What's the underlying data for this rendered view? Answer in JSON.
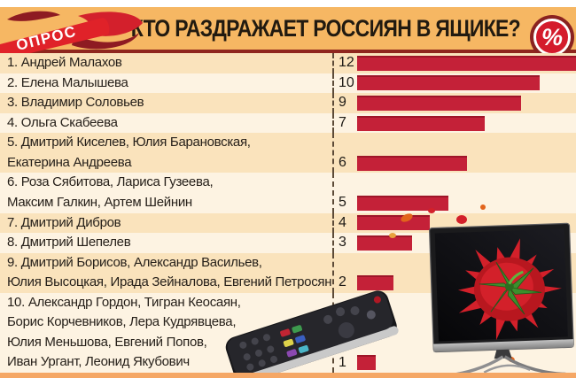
{
  "header": {
    "ribbon_label": "ОПРОС",
    "title": "КТО РАЗДРАЖАЕТ РОССИЯН В ЯЩИКЕ?",
    "badge": "%"
  },
  "colors": {
    "header_orange": "#f6b763",
    "row_peach": "#fae3bc",
    "row_cream": "#fdf3e2",
    "bar_red": "#c42138",
    "ribbon_red": "#d3202c",
    "ribbon_maroon": "#8e1b22",
    "divider_dark_red": "#8f261e"
  },
  "chart_data": {
    "type": "bar",
    "orientation": "horizontal",
    "title": "КТО РАЗДРАЖАЕТ РОССИЯН В ЯЩИКЕ?",
    "unit": "%",
    "max_value": 12,
    "xlim": [
      0,
      12
    ],
    "grid": false,
    "legend": "none",
    "categories": [
      "Андрей Малахов",
      "Елена Малышева",
      "Владимир Соловьев",
      "Ольга Скабеева",
      "Дмитрий Киселев, Юлия Барановская, Екатерина Андреева",
      "Роза Сябитова, Лариса Гузеева, Максим Галкин, Артем Шейнин",
      "Дмитрий Дибров",
      "Дмитрий Шепелев",
      "Дмитрий Борисов, Александр Васильев, Юлия Высоцкая, Ирада Зейналова, Евгений Петросян",
      "Александр Гордон, Тигран Кеосаян, Борис Корчевников, Лера Кудрявцева, Юлия Меньшова, Евгений Попов, Иван Ургант, Леонид Якубович"
    ],
    "values": [
      12,
      10,
      9,
      7,
      6,
      5,
      4,
      3,
      2,
      1
    ]
  },
  "rows": [
    {
      "lines": [
        "1. Андрей Малахов"
      ],
      "value": "12"
    },
    {
      "lines": [
        "2. Елена Малышева"
      ],
      "value": "10"
    },
    {
      "lines": [
        "3. Владимир Соловьев"
      ],
      "value": "9"
    },
    {
      "lines": [
        "4. Ольга Скабеева"
      ],
      "value": "7"
    },
    {
      "lines": [
        "5. Дмитрий Киселев, Юлия Барановская,",
        "Екатерина Андреева"
      ],
      "value": "6"
    },
    {
      "lines": [
        "6. Роза Сябитова, Лариса Гузеева,",
        "Максим Галкин, Артем Шейнин"
      ],
      "value": "5"
    },
    {
      "lines": [
        "7. Дмитрий Дибров"
      ],
      "value": "4"
    },
    {
      "lines": [
        "8. Дмитрий Шепелев"
      ],
      "value": "3"
    },
    {
      "lines": [
        "9. Дмитрий Борисов, Александр Васильев,",
        "Юлия Высоцкая, Ирада Зейналова, Евгений Петросян"
      ],
      "value": "2"
    },
    {
      "lines": [
        "10. Александр Гордон, Тигран Кеосаян,",
        "Борис Корчевников, Лера Кудрявцева,",
        "Юлия Меньшова, Евгений Попов,",
        "Иван Ургант, Леонид Якубович"
      ],
      "value": "1"
    }
  ]
}
